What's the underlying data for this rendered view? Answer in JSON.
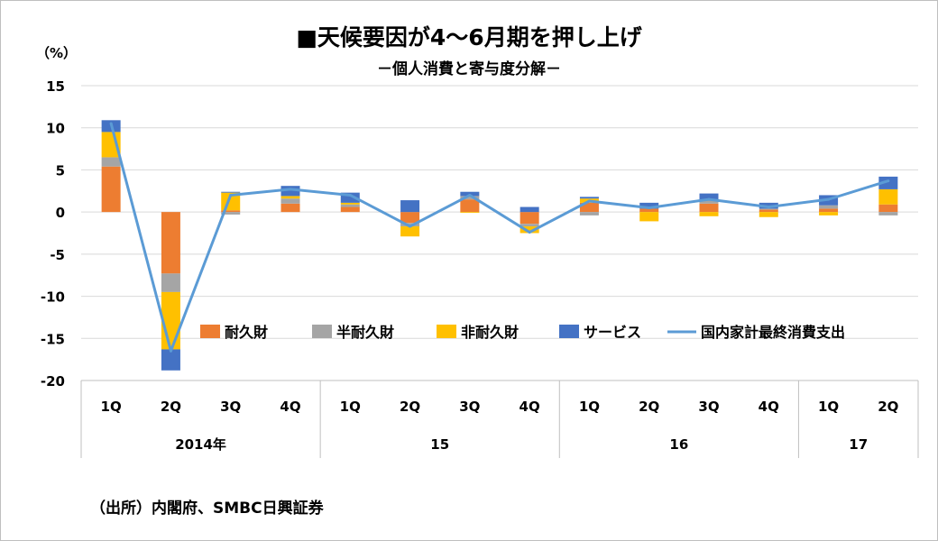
{
  "title": "■天候要因が4〜6月期を押し上げ",
  "subtitle": "－個人消費と寄与度分解－",
  "source": "（出所）内閣府、SMBC日興証券",
  "colors": {
    "durable": "#ed7d31",
    "semi_durable": "#a5a5a5",
    "non_durable": "#ffc000",
    "services": "#4472c4",
    "total": "#5b9bd5",
    "grid": "#d9d9d9",
    "axis": "#bfbfbf"
  },
  "chart_data": {
    "type": "bar",
    "title": "■天候要因が4〜6月期を押し上げ",
    "subtitle": "－個人消費と寄与度分解－",
    "ylabel": "（%）",
    "ylim": [
      -20,
      15
    ],
    "yticks": [
      15,
      10,
      5,
      0,
      -5,
      -10,
      -15,
      -20
    ],
    "grid": true,
    "legend_position": "center-right",
    "categories": [
      "1Q",
      "2Q",
      "3Q",
      "4Q",
      "1Q",
      "2Q",
      "3Q",
      "4Q",
      "1Q",
      "2Q",
      "3Q",
      "4Q",
      "1Q",
      "2Q"
    ],
    "years": [
      {
        "label": "2014年",
        "span": 4
      },
      {
        "label": "15",
        "span": 4
      },
      {
        "label": "16",
        "span": 4
      },
      {
        "label": "17",
        "span": 2
      }
    ],
    "series": [
      {
        "name": "耐久財",
        "kind": "bar",
        "color": "#ed7d31",
        "values": [
          5.4,
          -7.3,
          0.2,
          1.0,
          0.6,
          -1.3,
          1.5,
          -1.4,
          1.1,
          0.4,
          1.0,
          0.3,
          0.4,
          0.9
        ]
      },
      {
        "name": "半耐久財",
        "kind": "bar",
        "color": "#a5a5a5",
        "values": [
          1.1,
          -2.2,
          -0.3,
          0.6,
          0.3,
          -0.4,
          0.4,
          -0.3,
          -0.4,
          0.0,
          0.4,
          0.1,
          0.4,
          -0.4
        ]
      },
      {
        "name": "非耐久財",
        "kind": "bar",
        "color": "#ffc000",
        "values": [
          3.0,
          -6.8,
          2.1,
          0.3,
          0.2,
          -1.2,
          -0.1,
          -0.8,
          0.5,
          -1.1,
          -0.5,
          -0.6,
          -0.4,
          1.8
        ]
      },
      {
        "name": "サービス",
        "kind": "bar",
        "color": "#4472c4",
        "values": [
          1.4,
          -2.5,
          0.1,
          1.2,
          1.2,
          1.4,
          0.5,
          0.6,
          0.2,
          0.7,
          0.8,
          0.7,
          1.2,
          1.5
        ]
      },
      {
        "name": "国内家計最終消費支出",
        "kind": "line",
        "color": "#5b9bd5",
        "values": [
          10.5,
          -16.5,
          2.0,
          2.7,
          2.0,
          -1.7,
          2.0,
          -2.4,
          1.3,
          0.5,
          1.5,
          0.6,
          1.5,
          3.7
        ]
      }
    ]
  }
}
